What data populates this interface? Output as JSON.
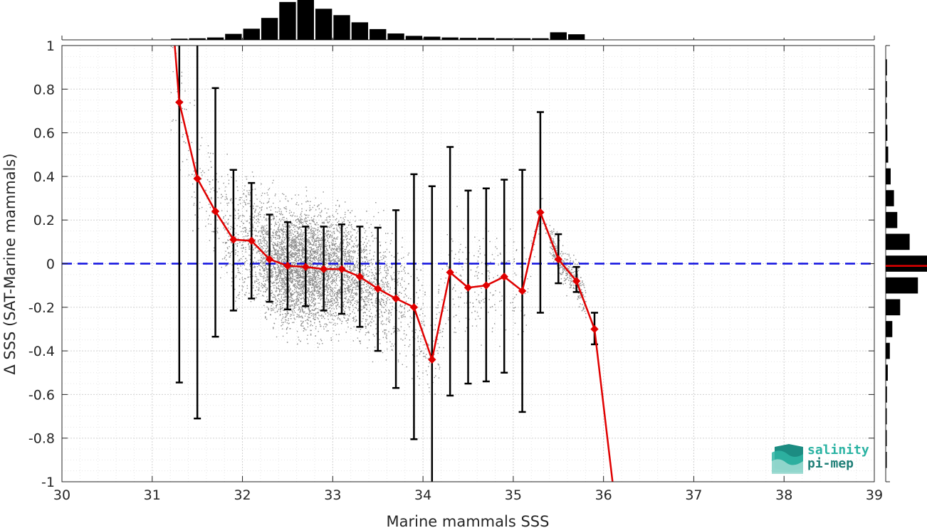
{
  "chart_data": {
    "type": "scatter",
    "xlabel": "Marine mammals SSS",
    "ylabel": "Δ SSS (SAT-Marine mammals)",
    "xlim": [
      30,
      39
    ],
    "ylim": [
      -1,
      1
    ],
    "xticks": [
      "30",
      "31",
      "32",
      "33",
      "34",
      "35",
      "36",
      "37",
      "38",
      "39"
    ],
    "yticks": [
      "-1",
      "-0.8",
      "-0.6",
      "-0.4",
      "-0.2",
      "0",
      "0.2",
      "0.4",
      "0.6",
      "0.8",
      "1"
    ],
    "grid": true,
    "zero_line": {
      "y": 0,
      "style": "dashed",
      "color": "#1010e0"
    },
    "scatter_color": "#8c8c8c",
    "binned_mean": {
      "color": "#e00000",
      "x": [
        31.3,
        31.5,
        31.7,
        31.9,
        32.1,
        32.3,
        32.5,
        32.7,
        32.9,
        33.1,
        33.3,
        33.5,
        33.7,
        33.9,
        34.1,
        34.3,
        34.5,
        34.7,
        34.9,
        35.1,
        35.3,
        35.5,
        35.7,
        35.9
      ],
      "mean": [
        0.74,
        0.39,
        0.24,
        0.11,
        0.105,
        0.02,
        -0.01,
        -0.015,
        -0.025,
        -0.025,
        -0.06,
        -0.115,
        -0.16,
        -0.2,
        -0.44,
        -0.04,
        -0.11,
        -0.1,
        -0.06,
        -0.125,
        0.235,
        0.02,
        -0.08,
        -0.3
      ],
      "std_low": [
        -0.545,
        -0.71,
        -0.335,
        -0.215,
        -0.16,
        -0.175,
        -0.21,
        -0.195,
        -0.215,
        -0.23,
        -0.29,
        -0.4,
        -0.57,
        -0.805,
        -1.0,
        -0.605,
        -0.55,
        -0.54,
        -0.5,
        -0.68,
        -0.225,
        -0.09,
        -0.13,
        -0.37
      ],
      "std_high": [
        1.0,
        1.0,
        0.805,
        0.43,
        0.37,
        0.225,
        0.19,
        0.17,
        0.17,
        0.18,
        0.17,
        0.165,
        0.245,
        0.41,
        0.355,
        0.535,
        0.335,
        0.345,
        0.385,
        0.43,
        0.695,
        0.135,
        -0.015,
        -0.225
      ],
      "head": {
        "x": [
          31.25,
          31.3
        ],
        "y": [
          1.0,
          0.74
        ]
      },
      "tail": {
        "x": [
          35.9,
          36.1
        ],
        "y": [
          -0.3,
          -1.0
        ]
      }
    },
    "top_histogram": {
      "bin_centers": [
        31.3,
        31.5,
        31.7,
        31.9,
        32.1,
        32.3,
        32.5,
        32.7,
        32.9,
        33.1,
        33.3,
        33.5,
        33.7,
        33.9,
        34.1,
        34.3,
        34.5,
        34.7,
        34.9,
        35.1,
        35.3,
        35.5,
        35.7
      ],
      "relative_counts": [
        0.03,
        0.04,
        0.06,
        0.15,
        0.28,
        0.55,
        0.95,
        1.0,
        0.78,
        0.62,
        0.44,
        0.27,
        0.16,
        0.1,
        0.08,
        0.06,
        0.05,
        0.05,
        0.04,
        0.04,
        0.04,
        0.19,
        0.14
      ]
    },
    "right_histogram": {
      "bin_centers": [
        0.9,
        0.8,
        0.7,
        0.6,
        0.5,
        0.4,
        0.3,
        0.2,
        0.1,
        0.0,
        -0.1,
        -0.2,
        -0.3,
        -0.4,
        -0.5,
        -0.6,
        -0.7,
        -0.8,
        -0.9
      ],
      "relative_counts": [
        0.03,
        0.03,
        0.03,
        0.04,
        0.06,
        0.12,
        0.2,
        0.28,
        0.58,
        1.0,
        0.78,
        0.35,
        0.16,
        0.1,
        0.05,
        0.03,
        0.02,
        0.02,
        0.02
      ],
      "median": -0.01
    }
  },
  "logo": {
    "line1": "salinity",
    "line2": "pi-mep"
  }
}
